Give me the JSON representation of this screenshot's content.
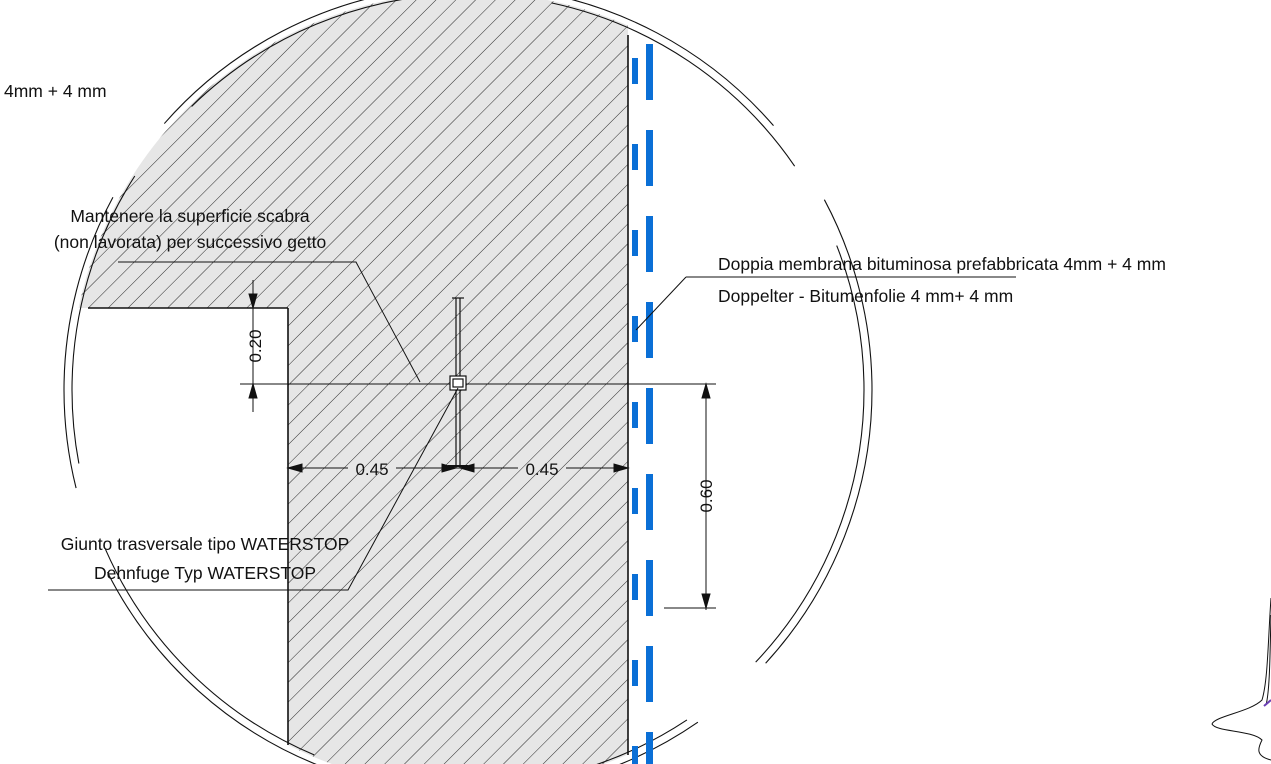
{
  "colors": {
    "line": "#111111",
    "hatch": "#2a2a2a",
    "concrete_fill": "#e6e6e6",
    "membrane": "#0a6fd6",
    "background": "#ffffff",
    "accent_purple": "#6a3fb5"
  },
  "labels": {
    "top_left_fragment": "4mm + 4 mm",
    "surface_note_line1": "Mantenere la superficie scabra",
    "surface_note_line2": "(non lavorata) per successivo getto",
    "membrane_it": "Doppia membrana bituminosa prefabbricata 4mm + 4 mm",
    "membrane_de": "Doppelter - Bitumenfolie 4 mm+ 4 mm",
    "waterstop_it": "Giunto trasversale tipo WATERSTOP",
    "waterstop_de": "Dehnfuge Typ WATERSTOP"
  },
  "dimensions": {
    "step_height": "0.20",
    "left_offset": "0.45",
    "right_offset": "0.45",
    "joint_height": "0.60"
  }
}
